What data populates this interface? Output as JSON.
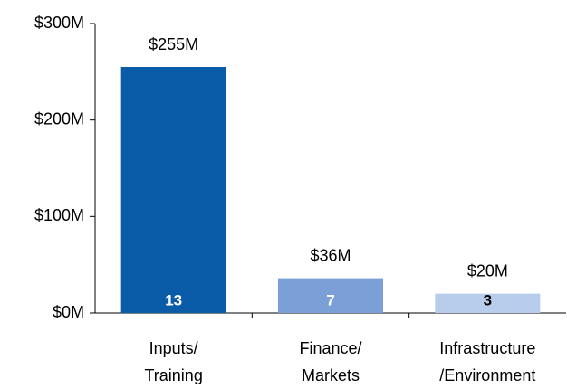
{
  "chart_data": {
    "type": "bar",
    "categories": [
      [
        "Inputs/",
        "Training"
      ],
      [
        "Finance/",
        "Markets"
      ],
      [
        "Infrastructure",
        "/Environment"
      ]
    ],
    "values": [
      255,
      36,
      20
    ],
    "value_labels": [
      "$255M",
      "$36M",
      "$20M"
    ],
    "counts": [
      13,
      7,
      3
    ],
    "colors": [
      "#0a5ca8",
      "#7b9fd7",
      "#b8cceb"
    ],
    "count_colors": [
      "#ffffff",
      "#ffffff",
      "#000000"
    ],
    "ylim": [
      0,
      300
    ],
    "yticks": [
      {
        "value": 0,
        "label": "$0M"
      },
      {
        "value": 100,
        "label": "$100M"
      },
      {
        "value": 200,
        "label": "$200M"
      },
      {
        "value": 300,
        "label": "$300M"
      }
    ]
  }
}
